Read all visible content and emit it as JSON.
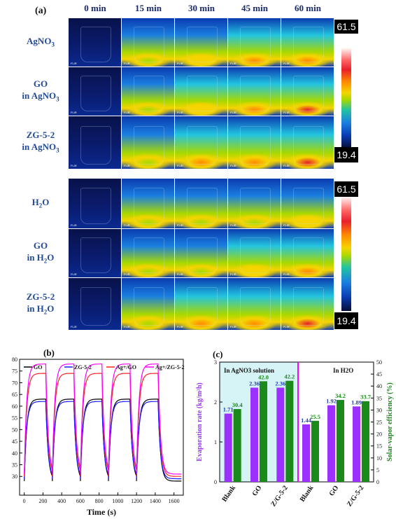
{
  "panel_a": {
    "label": "(a)",
    "time_headers": [
      "0 min",
      "15 min",
      "30 min",
      "45 min",
      "60 min"
    ],
    "group1_rows": [
      {
        "line1": "AgNO",
        "sub": "3",
        "line2": ""
      },
      {
        "line1": "GO",
        "sub": "",
        "line2": "in AgNO",
        "sub2": "3"
      },
      {
        "line1": "ZG-5-2",
        "sub": "",
        "line2": "in AgNO",
        "sub2": "3"
      }
    ],
    "group2_rows": [
      {
        "line1": "H",
        "sub": "2",
        "line1b": "O",
        "line2": ""
      },
      {
        "line1": "GO",
        "line2": "in H",
        "sub2": "2",
        "line2b": "O"
      },
      {
        "line1": "ZG-5-2",
        "line2": "in H",
        "sub2": "2",
        "line2b": "O"
      }
    ],
    "colorbar_max": "61.5",
    "colorbar_min": "19.4",
    "flir_text": "FLIR",
    "intensity": [
      [
        0.05,
        0.35,
        0.5,
        0.6,
        0.7
      ],
      [
        0.05,
        0.45,
        0.55,
        0.65,
        0.75
      ],
      [
        0.05,
        0.45,
        0.6,
        0.7,
        0.85
      ],
      [
        0.02,
        0.3,
        0.4,
        0.45,
        0.5
      ],
      [
        0.05,
        0.35,
        0.45,
        0.55,
        0.7
      ],
      [
        0.05,
        0.45,
        0.6,
        0.65,
        0.8
      ]
    ],
    "colors": {
      "dark": "#050c3a",
      "blue": "#0a3bb0",
      "cyan": "#22c4e0",
      "green": "#a8d800",
      "yellow": "#f5d400",
      "orange": "#ff8a00",
      "red": "#e8202b"
    }
  },
  "chart_data": [
    {
      "type": "line",
      "panel": "(b)",
      "title": "",
      "xlabel": "Time (s)",
      "ylabel": "",
      "xlim": [
        -50,
        1700
      ],
      "ylim": [
        22,
        80
      ],
      "xticks": [
        0,
        200,
        400,
        600,
        800,
        1000,
        1200,
        1400,
        1600
      ],
      "yticks": [
        30,
        35,
        40,
        45,
        50,
        55,
        60,
        65,
        70,
        75,
        80
      ],
      "legend": "top",
      "cycles": [
        [
          0,
          230,
          300
        ],
        [
          300,
          530,
          600
        ],
        [
          600,
          830,
          900
        ],
        [
          900,
          1130,
          1200
        ],
        [
          1200,
          1430,
          1500
        ]
      ],
      "end_x": 1680,
      "series": [
        {
          "name": "GO",
          "color": "#000000",
          "low": 28.0,
          "high": 63.0
        },
        {
          "name": "ZG-5-2",
          "color": "#1a1aff",
          "low": 29.0,
          "high": 62.0
        },
        {
          "name": "Ag+/GO",
          "color": "#ff2020",
          "low": 30.0,
          "high": 74.0
        },
        {
          "name": "Ag+/ZG-5-2",
          "color": "#ff00ff",
          "low": 31.0,
          "high": 78.0
        }
      ]
    },
    {
      "type": "bar",
      "panel": "(c)",
      "title": "",
      "ylabel": "Evaporation rate (kg/m²h)",
      "y2label": "Solar-vapor efficiency (%)",
      "ylim": [
        0,
        3
      ],
      "y2lim": [
        0,
        50
      ],
      "yticks": [
        0,
        1,
        2,
        3
      ],
      "y2ticks": [
        0,
        5,
        10,
        15,
        20,
        25,
        30,
        35,
        40,
        45,
        50
      ],
      "group_labels": [
        "In AgNO3 solution",
        "In H2O"
      ],
      "categories": [
        "Blank",
        "GO",
        "Z/G-5-2",
        "Blank",
        "GO",
        "Z/G-5-2"
      ],
      "series": [
        {
          "name": "Evaporation rate",
          "color": "#9b30ff",
          "values": [
            1.71,
            2.36,
            2.36,
            1.44,
            1.92,
            1.89
          ],
          "labels": [
            "1.71",
            "2.36",
            "2.36",
            "1.44",
            "1.92",
            "1.89"
          ]
        },
        {
          "name": "Solar-vapor efficiency",
          "color": "#1a8a1a",
          "values": [
            30.4,
            42.0,
            42.2,
            25.5,
            34.2,
            33.7
          ],
          "labels": [
            "30.4",
            "42.0",
            "42.2",
            "25.5",
            "34.2",
            "33.7"
          ]
        }
      ]
    }
  ]
}
